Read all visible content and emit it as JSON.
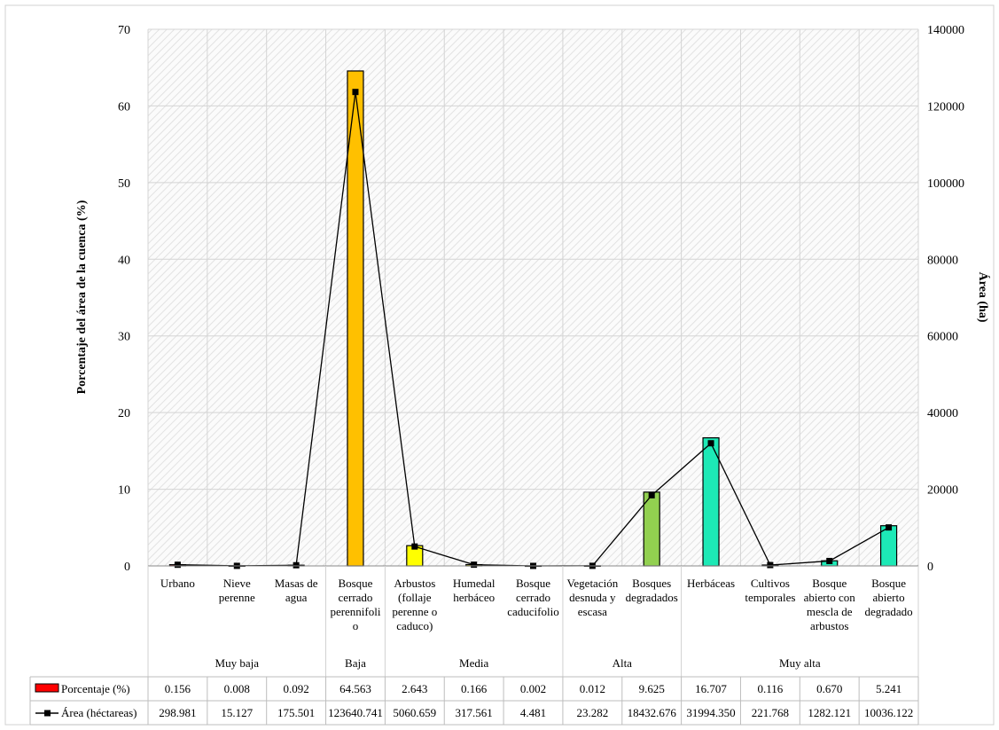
{
  "chart_data": {
    "type": "bar",
    "title": "",
    "ylabel": "Porcentaje del área de la cuenca (%)",
    "y2label": "Área (ha)",
    "ylim": [
      0,
      70
    ],
    "y2lim": [
      0,
      140000
    ],
    "yticks": [
      0,
      10,
      20,
      30,
      40,
      50,
      60,
      70
    ],
    "y2ticks": [
      0,
      20000,
      40000,
      60000,
      80000,
      100000,
      120000,
      140000
    ],
    "grid": true,
    "categories": [
      [
        "Urbano"
      ],
      [
        "Nieve",
        "perenne"
      ],
      [
        "Masas de",
        "agua"
      ],
      [
        "Bosque",
        "cerrado",
        "perennifoli",
        "o"
      ],
      [
        "Arbustos",
        "(follaje",
        "perenne o",
        "caduco)"
      ],
      [
        "Humedal",
        "herbáceo"
      ],
      [
        "Bosque",
        "cerrado",
        "caducifolio"
      ],
      [
        "Vegetación",
        "desnuda y",
        "escasa"
      ],
      [
        "Bosques",
        "degradados"
      ],
      [
        "Herbáceas"
      ],
      [
        "Cultivos",
        "temporales"
      ],
      [
        "Bosque",
        "abierto con",
        "mescla de",
        "arbustos"
      ],
      [
        "Bosque",
        "abierto",
        "degradado"
      ]
    ],
    "groups": [
      {
        "label": "Muy baja",
        "start": 0,
        "end": 2
      },
      {
        "label": "Baja",
        "start": 3,
        "end": 3
      },
      {
        "label": "Media",
        "start": 4,
        "end": 6
      },
      {
        "label": "Alta",
        "start": 7,
        "end": 8
      },
      {
        "label": "Muy alta",
        "start": 9,
        "end": 12
      }
    ],
    "bar_colors": [
      "#ff0000",
      "#ff0000",
      "#ff0000",
      "#ffc000",
      "#ffff00",
      "#ffff00",
      "#ffff00",
      "#92d050",
      "#92d050",
      "#1de9b6",
      "#1de9b6",
      "#1de9b6",
      "#1de9b6"
    ],
    "series": [
      {
        "name": "Porcentaje (%)",
        "kind": "bar",
        "axis": "left",
        "values": [
          0.156,
          0.008,
          0.092,
          64.563,
          2.643,
          0.166,
          0.002,
          0.012,
          9.625,
          16.707,
          0.116,
          0.67,
          5.241
        ],
        "labels": [
          "0.156",
          "0.008",
          "0.092",
          "64.563",
          "2.643",
          "0.166",
          "0.002",
          "0.012",
          "9.625",
          "16.707",
          "0.116",
          "0.670",
          "5.241"
        ],
        "color": "#ff0000"
      },
      {
        "name": "Área (héctareas)",
        "kind": "line",
        "axis": "right",
        "values": [
          298.981,
          15.127,
          175.501,
          123640.741,
          5060.659,
          317.561,
          4.481,
          23.282,
          18432.676,
          31994.35,
          221.768,
          1282.121,
          10036.122
        ],
        "labels": [
          "298.981",
          "15.127",
          "175.501",
          "123640.741",
          "5060.659",
          "317.561",
          "4.481",
          "23.282",
          "18432.676",
          "31994.350",
          "221.768",
          "1282.121",
          "10036.122"
        ],
        "color": "#000000"
      }
    ]
  }
}
